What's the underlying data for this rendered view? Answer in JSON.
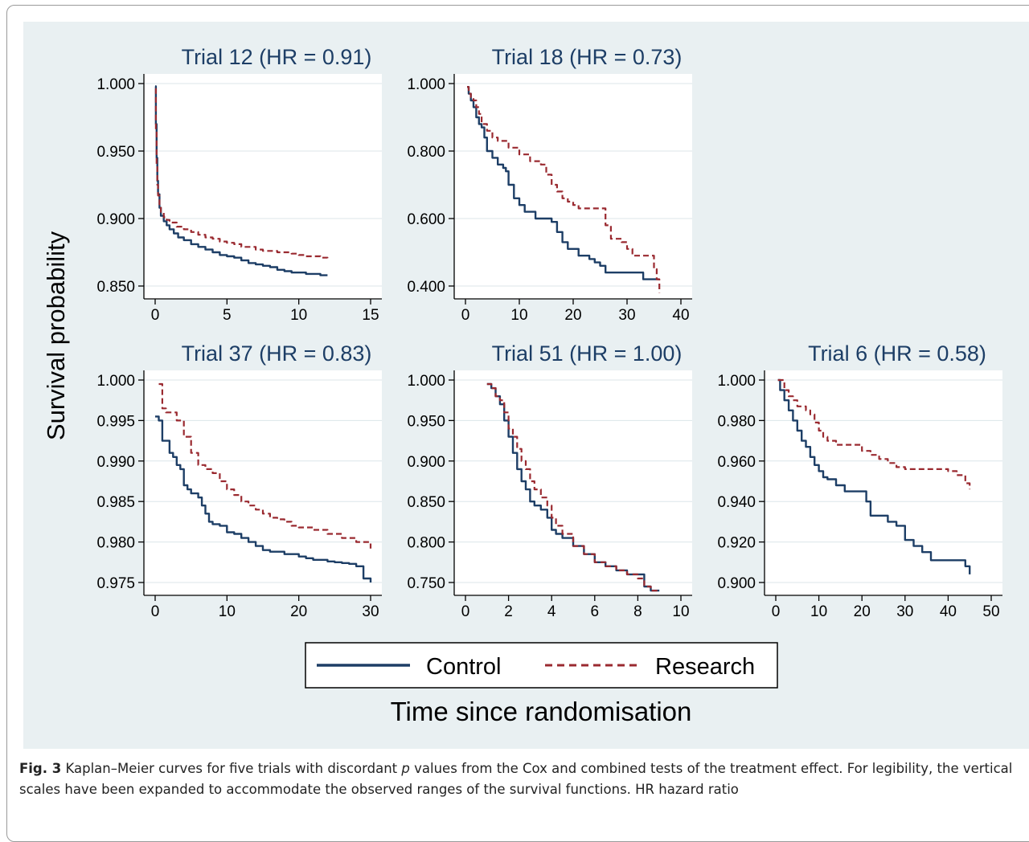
{
  "figure": {
    "ylabel": "Survival probability",
    "xlabel": "Time since randomisation",
    "legend": {
      "placement": "bottom-center",
      "items": [
        {
          "name": "Control",
          "color": "#1d3e66",
          "dash": "solid"
        },
        {
          "name": "Research",
          "color": "#9a2a30",
          "dash": "dashed"
        }
      ]
    },
    "colors": {
      "background": "#e9f0f2",
      "plot_area": "#ffffff",
      "grid": "#dce6ea",
      "axis": "#000000"
    },
    "caption": {
      "label": "Fig. 3",
      "text_before_p": " Kaplan–Meier curves for five trials with discordant ",
      "p_symbol": "p",
      "text_after_p": " values from the Cox and combined tests of the treatment effect. For legibility, the vertical scales have been expanded to accommodate the observed ranges of the survival functions. HR hazard ratio"
    }
  },
  "chart_data": [
    {
      "type": "line",
      "title": "Trial 12 (HR = 0.91)",
      "xlim": [
        0,
        15
      ],
      "xticks": [
        "0",
        "5",
        "10",
        "15"
      ],
      "xtick_values": [
        0,
        5,
        10,
        15
      ],
      "ylim": [
        0.85,
        1.0
      ],
      "yticks": [
        "0.850",
        "0.900",
        "0.950",
        "1.000"
      ],
      "ytick_values": [
        0.85,
        0.9,
        0.95,
        1.0
      ],
      "grid": true,
      "series": [
        {
          "name": "Control",
          "x": [
            0,
            0.05,
            0.1,
            0.15,
            0.2,
            0.3,
            0.4,
            0.6,
            0.8,
            1.0,
            1.3,
            1.6,
            2.0,
            2.5,
            3.0,
            3.5,
            4.0,
            4.5,
            5.0,
            5.5,
            6.0,
            6.5,
            7.0,
            7.5,
            8.0,
            8.5,
            9.0,
            9.5,
            10.0,
            10.5,
            11.0,
            11.5,
            12.0
          ],
          "y": [
            0.998,
            0.97,
            0.945,
            0.928,
            0.918,
            0.908,
            0.902,
            0.898,
            0.895,
            0.892,
            0.889,
            0.886,
            0.884,
            0.881,
            0.879,
            0.877,
            0.875,
            0.873,
            0.872,
            0.871,
            0.869,
            0.867,
            0.866,
            0.865,
            0.864,
            0.862,
            0.861,
            0.86,
            0.86,
            0.859,
            0.859,
            0.858,
            0.858
          ]
        },
        {
          "name": "Research",
          "x": [
            0,
            0.05,
            0.1,
            0.15,
            0.2,
            0.3,
            0.4,
            0.6,
            0.8,
            1.0,
            1.5,
            2.0,
            2.5,
            3.0,
            3.5,
            4.0,
            4.5,
            5.0,
            5.5,
            6.0,
            6.5,
            7.0,
            7.5,
            8.0,
            8.5,
            9.0,
            9.5,
            10.0,
            10.5,
            11.0,
            11.5,
            12.0
          ],
          "y": [
            0.996,
            0.965,
            0.94,
            0.925,
            0.917,
            0.909,
            0.905,
            0.901,
            0.899,
            0.897,
            0.894,
            0.892,
            0.89,
            0.888,
            0.886,
            0.885,
            0.883,
            0.882,
            0.881,
            0.879,
            0.879,
            0.877,
            0.876,
            0.876,
            0.875,
            0.875,
            0.874,
            0.873,
            0.872,
            0.872,
            0.871,
            0.87
          ]
        }
      ]
    },
    {
      "type": "line",
      "title": "Trial 18 (HR = 0.73)",
      "xlim": [
        0,
        40
      ],
      "xticks": [
        "0",
        "10",
        "20",
        "30",
        "40"
      ],
      "xtick_values": [
        0,
        10,
        20,
        30,
        40
      ],
      "ylim": [
        0.4,
        1.0
      ],
      "yticks": [
        "0.400",
        "0.600",
        "0.800",
        "1.000"
      ],
      "ytick_values": [
        0.4,
        0.6,
        0.8,
        1.0
      ],
      "grid": true,
      "series": [
        {
          "name": "Control",
          "x": [
            0.3,
            0.6,
            1.0,
            1.5,
            2.0,
            2.5,
            3.0,
            3.5,
            4.0,
            5.0,
            6.0,
            7.0,
            7.5,
            8.0,
            9.0,
            10.0,
            11.0,
            12.0,
            13.0,
            14.0,
            15.0,
            16.0,
            17.0,
            18.0,
            19.0,
            20.0,
            21.0,
            22.0,
            23.0,
            24.0,
            25.0,
            26.0,
            28.0,
            30.0,
            32.0,
            33.0,
            34.0,
            35.0,
            36.0
          ],
          "y": [
            0.99,
            0.97,
            0.95,
            0.93,
            0.9,
            0.88,
            0.87,
            0.84,
            0.8,
            0.78,
            0.76,
            0.75,
            0.74,
            0.7,
            0.66,
            0.64,
            0.62,
            0.62,
            0.6,
            0.6,
            0.6,
            0.59,
            0.56,
            0.53,
            0.51,
            0.51,
            0.49,
            0.49,
            0.48,
            0.47,
            0.46,
            0.44,
            0.44,
            0.44,
            0.44,
            0.42,
            0.42,
            0.42,
            0.42
          ]
        },
        {
          "name": "Research",
          "x": [
            0.3,
            0.6,
            1.0,
            1.5,
            2.0,
            2.5,
            3.0,
            4.0,
            5.0,
            6.0,
            8.0,
            10.0,
            12.0,
            14.0,
            15.0,
            16.0,
            17.0,
            18.0,
            19.0,
            20.0,
            21.0,
            22.0,
            23.0,
            24.0,
            25.0,
            26.0,
            27.0,
            28.0,
            29.0,
            30.0,
            31.0,
            32.0,
            33.0,
            34.0,
            35.0,
            35.5,
            36.0
          ],
          "y": [
            0.99,
            0.97,
            0.96,
            0.95,
            0.93,
            0.91,
            0.88,
            0.86,
            0.84,
            0.83,
            0.81,
            0.79,
            0.77,
            0.76,
            0.73,
            0.7,
            0.68,
            0.66,
            0.65,
            0.64,
            0.63,
            0.63,
            0.63,
            0.63,
            0.63,
            0.58,
            0.54,
            0.54,
            0.53,
            0.51,
            0.49,
            0.49,
            0.49,
            0.49,
            0.45,
            0.42,
            0.38
          ]
        }
      ]
    },
    {
      "type": "line",
      "title": "Trial 37 (HR = 0.83)",
      "xlim": [
        0,
        30
      ],
      "xticks": [
        "0",
        "10",
        "20",
        "30"
      ],
      "xtick_values": [
        0,
        10,
        20,
        30
      ],
      "ylim": [
        0.975,
        1.0
      ],
      "yticks": [
        "0.975",
        "0.980",
        "0.985",
        "0.990",
        "0.995",
        "1.000"
      ],
      "ytick_values": [
        0.975,
        0.98,
        0.985,
        0.99,
        0.995,
        1.0
      ],
      "grid": true,
      "series": [
        {
          "name": "Control",
          "x": [
            0,
            0.5,
            1.0,
            1.5,
            2.0,
            2.5,
            3.0,
            3.5,
            4.0,
            4.5,
            5.0,
            5.5,
            6.0,
            6.5,
            7.0,
            7.5,
            8.0,
            9.0,
            10.0,
            11.0,
            12.0,
            13.0,
            14.0,
            15.0,
            16.0,
            18.0,
            20.0,
            21.0,
            22.0,
            24.0,
            25.0,
            26.0,
            27.0,
            28.0,
            29.0,
            30.0
          ],
          "y": [
            0.9955,
            0.995,
            0.9925,
            0.9925,
            0.991,
            0.9905,
            0.9895,
            0.989,
            0.987,
            0.9865,
            0.986,
            0.986,
            0.9855,
            0.9845,
            0.9835,
            0.9825,
            0.9822,
            0.982,
            0.9812,
            0.981,
            0.9805,
            0.98,
            0.9795,
            0.979,
            0.9788,
            0.9785,
            0.9782,
            0.978,
            0.9778,
            0.9776,
            0.9775,
            0.9774,
            0.9773,
            0.977,
            0.9755,
            0.975
          ]
        },
        {
          "name": "Research",
          "x": [
            0.5,
            1.0,
            1.5,
            2.0,
            3.0,
            4.0,
            5.0,
            6.0,
            7.0,
            8.0,
            9.0,
            10.0,
            11.0,
            12.0,
            13.0,
            14.0,
            15.0,
            16.0,
            17.0,
            18.0,
            19.0,
            20.0,
            22.0,
            24.0,
            26.0,
            28.0,
            30.0
          ],
          "y": [
            0.9995,
            0.9965,
            0.996,
            0.996,
            0.995,
            0.993,
            0.991,
            0.9895,
            0.989,
            0.9885,
            0.9875,
            0.9865,
            0.9858,
            0.985,
            0.9845,
            0.984,
            0.9835,
            0.983,
            0.9828,
            0.9825,
            0.982,
            0.9818,
            0.9815,
            0.981,
            0.9805,
            0.98,
            0.9792
          ]
        }
      ]
    },
    {
      "type": "line",
      "title": "Trial 51 (HR = 1.00)",
      "xlim": [
        0,
        10
      ],
      "xticks": [
        "0",
        "2",
        "4",
        "6",
        "8",
        "10"
      ],
      "xtick_values": [
        0,
        2,
        4,
        6,
        8,
        10
      ],
      "ylim": [
        0.75,
        1.0
      ],
      "yticks": [
        "0.750",
        "0.800",
        "0.850",
        "0.900",
        "0.950",
        "1.000"
      ],
      "ytick_values": [
        0.75,
        0.8,
        0.85,
        0.9,
        0.95,
        1.0
      ],
      "grid": true,
      "series": [
        {
          "name": "Control",
          "x": [
            1.0,
            1.2,
            1.4,
            1.6,
            1.8,
            2.0,
            2.2,
            2.4,
            2.6,
            2.8,
            3.0,
            3.2,
            3.5,
            3.8,
            4.0,
            4.2,
            4.5,
            5.0,
            5.5,
            6.0,
            6.5,
            7.0,
            7.5,
            8.0,
            8.3,
            8.6,
            9.0
          ],
          "y": [
            0.995,
            0.99,
            0.98,
            0.97,
            0.95,
            0.93,
            0.91,
            0.89,
            0.875,
            0.865,
            0.85,
            0.845,
            0.84,
            0.83,
            0.815,
            0.81,
            0.805,
            0.795,
            0.785,
            0.775,
            0.77,
            0.765,
            0.76,
            0.76,
            0.745,
            0.74,
            0.74
          ]
        },
        {
          "name": "Research",
          "x": [
            1.0,
            1.2,
            1.4,
            1.6,
            1.8,
            2.0,
            2.2,
            2.4,
            2.6,
            2.8,
            3.0,
            3.2,
            3.5,
            3.8,
            4.0,
            4.2,
            4.5,
            5.0,
            5.5,
            6.0,
            6.5,
            7.0,
            7.5,
            8.0,
            8.3,
            8.6,
            9.0
          ],
          "y": [
            0.995,
            0.99,
            0.98,
            0.975,
            0.96,
            0.94,
            0.93,
            0.915,
            0.9,
            0.89,
            0.875,
            0.865,
            0.855,
            0.845,
            0.83,
            0.82,
            0.81,
            0.795,
            0.785,
            0.775,
            0.77,
            0.765,
            0.76,
            0.755,
            0.745,
            0.74,
            0.74
          ]
        }
      ]
    },
    {
      "type": "line",
      "title": "Trial 6 (HR = 0.58)",
      "xlim": [
        0,
        50
      ],
      "xticks": [
        "0",
        "10",
        "20",
        "30",
        "40",
        "50"
      ],
      "xtick_values": [
        0,
        10,
        20,
        30,
        40,
        50
      ],
      "ylim": [
        0.9,
        1.0
      ],
      "yticks": [
        "0.900",
        "0.920",
        "0.940",
        "0.960",
        "0.980",
        "1.000"
      ],
      "ytick_values": [
        0.9,
        0.92,
        0.94,
        0.96,
        0.98,
        1.0
      ],
      "grid": true,
      "series": [
        {
          "name": "Control",
          "x": [
            0.5,
            1.0,
            2.0,
            3.0,
            4.0,
            5.0,
            6.0,
            7.0,
            8.0,
            9.0,
            10.0,
            11.0,
            12.0,
            14.0,
            16.0,
            18.0,
            20.0,
            21.0,
            22.0,
            24.0,
            26.0,
            28.0,
            29.0,
            30.0,
            32.0,
            34.0,
            36.0,
            38.0,
            40.0,
            42.0,
            44.0,
            45.0
          ],
          "y": [
            1.0,
            0.995,
            0.99,
            0.985,
            0.98,
            0.975,
            0.97,
            0.967,
            0.962,
            0.958,
            0.955,
            0.952,
            0.951,
            0.948,
            0.945,
            0.945,
            0.945,
            0.94,
            0.933,
            0.933,
            0.93,
            0.928,
            0.928,
            0.921,
            0.918,
            0.915,
            0.911,
            0.911,
            0.911,
            0.911,
            0.908,
            0.904
          ]
        },
        {
          "name": "Research",
          "x": [
            0.5,
            1.0,
            2.0,
            3.0,
            4.0,
            5.0,
            6.0,
            7.0,
            8.0,
            9.0,
            10.0,
            11.0,
            12.0,
            14.0,
            16.0,
            18.0,
            20.0,
            22.0,
            24.0,
            26.0,
            28.0,
            30.0,
            32.0,
            34.0,
            36.0,
            38.0,
            40.0,
            42.0,
            44.0,
            45.0
          ],
          "y": [
            1.0,
            1.0,
            0.995,
            0.992,
            0.99,
            0.987,
            0.987,
            0.985,
            0.983,
            0.979,
            0.975,
            0.972,
            0.97,
            0.968,
            0.968,
            0.968,
            0.965,
            0.963,
            0.961,
            0.959,
            0.957,
            0.956,
            0.956,
            0.956,
            0.956,
            0.956,
            0.955,
            0.953,
            0.949,
            0.946
          ]
        }
      ]
    }
  ]
}
